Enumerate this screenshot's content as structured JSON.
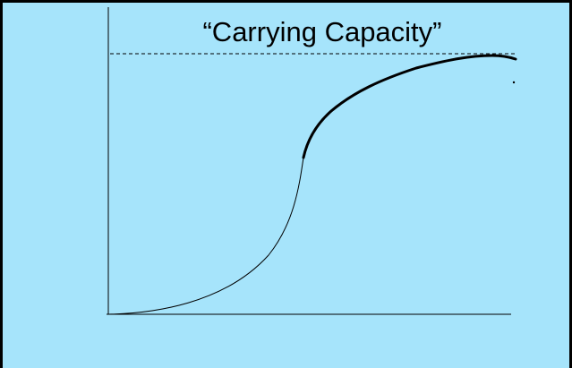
{
  "diagram": {
    "type": "logistic-growth-curve",
    "label": "“Carrying Capacity”",
    "background_color": "#a6e4fb",
    "line_color": "#000000",
    "border_color": "#000000"
  }
}
